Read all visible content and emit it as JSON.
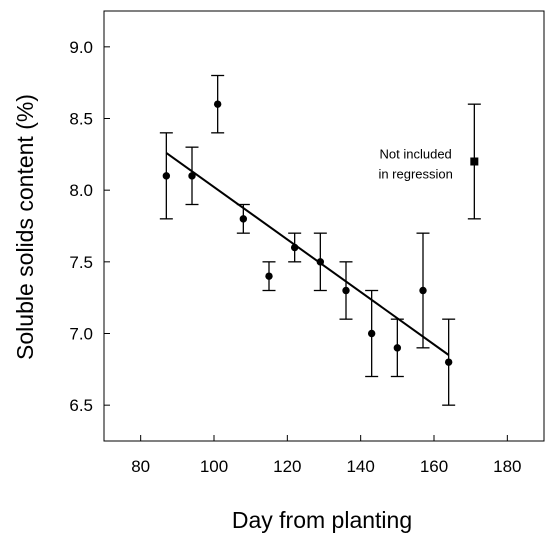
{
  "chart_data": {
    "type": "scatter",
    "xlabel": "Day from planting",
    "ylabel": "Soluble solids content (%)",
    "xlim": [
      70,
      190
    ],
    "ylim": [
      6.25,
      9.25
    ],
    "xticks": [
      80,
      100,
      120,
      140,
      160,
      180
    ],
    "yticks": [
      6.5,
      7.0,
      7.5,
      8.0,
      8.5,
      9.0
    ],
    "ytick_labels": [
      "6.5",
      "7.0",
      "7.5",
      "8.0",
      "8.5",
      "9.0"
    ],
    "grid": false,
    "series": [
      {
        "marker": "circle",
        "points": [
          {
            "x": 87,
            "y": 8.1,
            "low": 7.8,
            "high": 8.4
          },
          {
            "x": 94,
            "y": 8.1,
            "low": 7.9,
            "high": 8.3
          },
          {
            "x": 101,
            "y": 8.6,
            "low": 8.4,
            "high": 8.8
          },
          {
            "x": 108,
            "y": 7.8,
            "low": 7.7,
            "high": 7.9
          },
          {
            "x": 115,
            "y": 7.4,
            "low": 7.3,
            "high": 7.5
          },
          {
            "x": 122,
            "y": 7.6,
            "low": 7.5,
            "high": 7.7
          },
          {
            "x": 129,
            "y": 7.5,
            "low": 7.3,
            "high": 7.7
          },
          {
            "x": 136,
            "y": 7.3,
            "low": 7.1,
            "high": 7.5
          },
          {
            "x": 143,
            "y": 7.0,
            "low": 6.7,
            "high": 7.3
          },
          {
            "x": 150,
            "y": 6.9,
            "low": 6.7,
            "high": 7.1
          },
          {
            "x": 157,
            "y": 7.3,
            "low": 6.9,
            "high": 7.7
          },
          {
            "x": 164,
            "y": 6.8,
            "low": 6.5,
            "high": 7.1
          }
        ]
      },
      {
        "marker": "square",
        "points": [
          {
            "x": 171,
            "y": 8.2,
            "low": 7.8,
            "high": 8.6
          }
        ]
      }
    ],
    "regression_line": {
      "x": [
        87,
        164
      ],
      "y": [
        8.26,
        6.85
      ]
    },
    "annotation": {
      "line1": "Not included",
      "line2": "in regression",
      "x": 155,
      "y": 8.2
    }
  }
}
